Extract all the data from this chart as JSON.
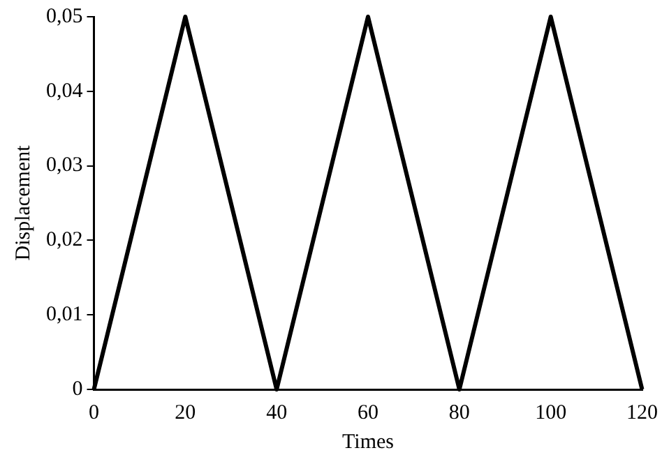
{
  "chart_data": {
    "type": "line",
    "xlabel": "Times",
    "ylabel": "Displacement",
    "x": [
      0,
      20,
      40,
      60,
      80,
      100,
      120
    ],
    "series": [
      {
        "color": "#000000",
        "values": [
          0,
          0.05,
          0,
          0.05,
          0,
          0.05,
          0
        ]
      }
    ],
    "xlim": [
      0,
      120
    ],
    "xticks": [
      0,
      20,
      40,
      60,
      80,
      100,
      120
    ],
    "ylim": [
      0,
      0.05
    ],
    "yticks": [
      0,
      {
        "value": 0.01,
        "label": "0,01"
      },
      {
        "value": 0.02,
        "label": "0,02"
      },
      {
        "value": 0.03,
        "label": "0,03"
      },
      {
        "value": 0.04,
        "label": "0,04"
      },
      {
        "value": 0.05,
        "label": "0,05"
      }
    ],
    "grid": false,
    "legend": false,
    "marker": "none",
    "line_style": "solid"
  }
}
